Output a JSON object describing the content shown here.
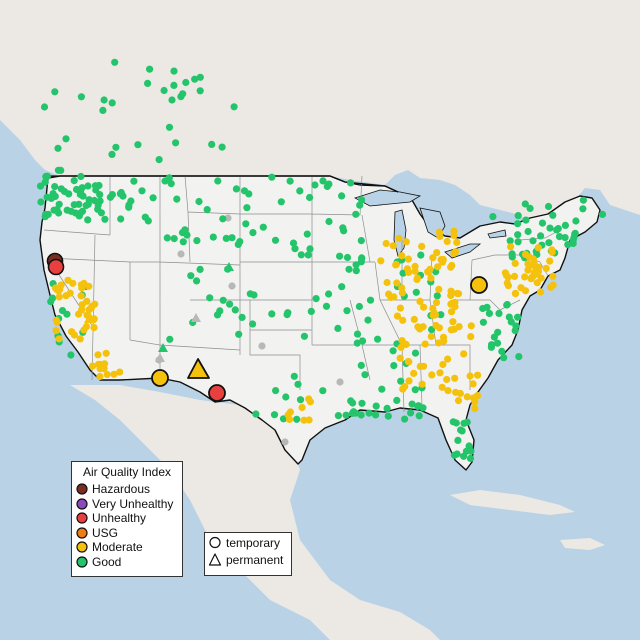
{
  "legend_aqi": {
    "title": "Air Quality Index",
    "items": [
      {
        "label": "Hazardous",
        "color": "#7a2e22"
      },
      {
        "label": "Very Unhealthy",
        "color": "#8b4bbd"
      },
      {
        "label": "Unhealthy",
        "color": "#e8403e"
      },
      {
        "label": "USG",
        "color": "#f07c16"
      },
      {
        "label": "Moderate",
        "color": "#f4c20d"
      },
      {
        "label": "Good",
        "color": "#24c46b"
      }
    ]
  },
  "legend_type": {
    "items": [
      {
        "label": "temporary",
        "shape": "circle"
      },
      {
        "label": "permanent",
        "shape": "triangle"
      }
    ]
  },
  "map": {
    "region": "contiguous United States",
    "colors": {
      "water": "#b9d2e6",
      "land": "#f2f2f1",
      "land_outside": "#ece8e4",
      "inactive_monitor": "#b8b8b8"
    },
    "highlighted_monitors": [
      {
        "category": "Hazardous",
        "type": "temporary",
        "location": "northern California"
      },
      {
        "category": "Unhealthy",
        "type": "temporary",
        "location": "northern California"
      },
      {
        "category": "Unhealthy",
        "type": "temporary",
        "location": "southern New Mexico"
      },
      {
        "category": "Moderate",
        "type": "temporary",
        "location": "southern Arizona"
      },
      {
        "category": "Moderate",
        "type": "permanent",
        "location": "southwestern New Mexico"
      },
      {
        "category": "Moderate",
        "type": "temporary",
        "location": "Ohio"
      }
    ]
  }
}
